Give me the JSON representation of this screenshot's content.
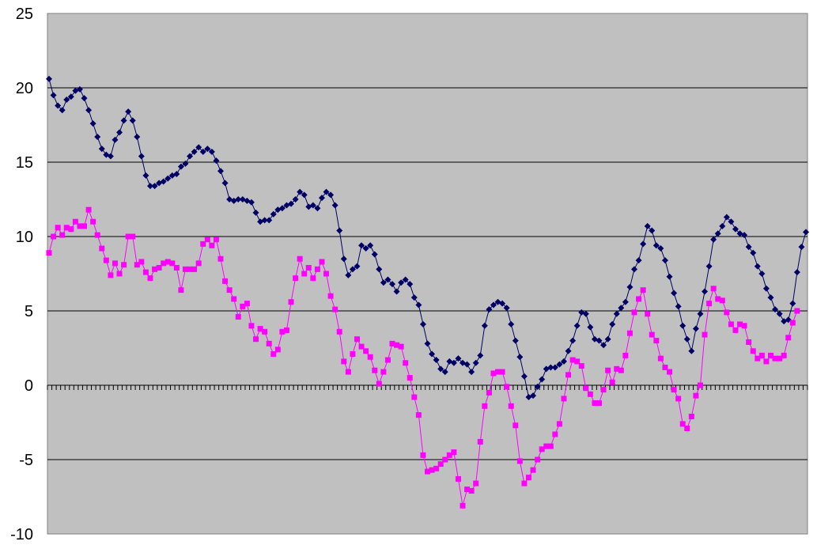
{
  "chart_data": {
    "type": "line",
    "title": "",
    "xlabel": "",
    "ylabel": "",
    "ylim": [
      -10,
      25
    ],
    "yticks": [
      25,
      20,
      15,
      10,
      5,
      0,
      -5,
      -10
    ],
    "grid": true,
    "legend": "none",
    "plot_background": "#c0c0c0",
    "series": [
      {
        "color": "#000066",
        "marker": "diamond",
        "values": [
          20.6,
          19.5,
          18.8,
          18.5,
          19.2,
          19.4,
          19.8,
          19.9,
          19.3,
          18.5,
          17.6,
          16.7,
          15.9,
          15.5,
          15.4,
          16.5,
          17.0,
          17.8,
          18.4,
          17.8,
          16.7,
          15.4,
          14.1,
          13.4,
          13.4,
          13.6,
          13.7,
          13.9,
          14.1,
          14.2,
          14.7,
          14.9,
          15.4,
          15.7,
          16.0,
          15.7,
          15.9,
          15.7,
          15.1,
          14.4,
          13.6,
          12.5,
          12.4,
          12.5,
          12.5,
          12.4,
          12.3,
          11.6,
          11.0,
          11.1,
          11.1,
          11.5,
          11.8,
          11.9,
          12.1,
          12.2,
          12.5,
          13.0,
          12.8,
          12.0,
          12.1,
          11.9,
          12.6,
          13.0,
          12.8,
          12.1,
          10.4,
          8.5,
          7.4,
          7.8,
          8.0,
          9.4,
          9.2,
          9.4,
          8.8,
          7.8,
          6.9,
          7.1,
          6.8,
          6.3,
          6.9,
          7.1,
          6.8,
          5.9,
          5.4,
          4.1,
          2.8,
          2.1,
          1.7,
          1.1,
          0.9,
          1.6,
          1.5,
          1.8,
          1.5,
          1.4,
          0.9,
          1.5,
          2.0,
          4.0,
          5.1,
          5.4,
          5.6,
          5.5,
          5.2,
          4.1,
          3.0,
          1.9,
          0.6,
          -0.8,
          -0.7,
          -0.1,
          0.4,
          1.1,
          1.2,
          1.2,
          1.4,
          1.6,
          2.3,
          3.0,
          4.0,
          4.9,
          4.8,
          3.9,
          3.1,
          3.0,
          2.7,
          3.1,
          4.1,
          4.8,
          5.2,
          5.6,
          6.6,
          7.8,
          8.4,
          9.5,
          10.7,
          10.4,
          9.4,
          9.2,
          8.4,
          7.3,
          6.2,
          5.3,
          4.0,
          3.1,
          2.3,
          3.8,
          4.8,
          6.3,
          8.0,
          9.8,
          10.2,
          10.7,
          11.3,
          11.0,
          10.5,
          10.2,
          10.1,
          9.3,
          8.9,
          8.0,
          7.5,
          6.5,
          5.9,
          5.1,
          4.8,
          4.3,
          4.4,
          5.5,
          7.6,
          9.3,
          10.3
        ]
      },
      {
        "color": "#ff00ff",
        "marker": "square",
        "values": [
          8.9,
          10.0,
          10.6,
          10.1,
          10.6,
          10.5,
          11.0,
          10.7,
          10.7,
          11.8,
          11.0,
          10.1,
          9.2,
          8.4,
          7.4,
          8.2,
          7.5,
          8.1,
          10.0,
          10.0,
          8.1,
          8.3,
          7.6,
          7.2,
          7.8,
          7.9,
          8.2,
          8.3,
          8.2,
          7.9,
          6.4,
          7.8,
          7.8,
          7.8,
          8.2,
          9.5,
          9.8,
          9.4,
          9.8,
          8.5,
          7.0,
          6.4,
          5.8,
          4.6,
          5.3,
          5.5,
          4.0,
          3.1,
          3.8,
          3.6,
          2.8,
          2.1,
          2.4,
          3.6,
          3.7,
          5.6,
          7.2,
          8.5,
          7.5,
          7.9,
          7.2,
          7.8,
          8.3,
          7.5,
          6.0,
          5.1,
          3.6,
          1.6,
          0.9,
          2.1,
          3.1,
          2.6,
          2.3,
          1.9,
          1.0,
          0.1,
          0.9,
          1.7,
          2.8,
          2.7,
          2.6,
          1.5,
          0.5,
          -0.8,
          -2.0,
          -4.7,
          -5.8,
          -5.7,
          -5.6,
          -5.3,
          -5.0,
          -4.7,
          -4.5,
          -6.3,
          -8.1,
          -7.0,
          -7.1,
          -6.6,
          -3.8,
          -1.4,
          -0.5,
          0.8,
          0.9,
          0.9,
          -0.1,
          -1.4,
          -2.7,
          -5.1,
          -6.6,
          -6.2,
          -5.7,
          -5.0,
          -4.3,
          -4.1,
          -4.1,
          -3.3,
          -2.6,
          -0.9,
          0.7,
          1.7,
          1.6,
          1.3,
          -0.2,
          -0.6,
          -1.2,
          -1.2,
          -0.3,
          1.0,
          0.2,
          1.1,
          1.0,
          2.0,
          3.5,
          4.9,
          5.8,
          6.4,
          4.8,
          3.4,
          3.0,
          1.8,
          1.2,
          0.9,
          -0.3,
          -0.9,
          -2.6,
          -2.9,
          -2.1,
          -0.7,
          0.0,
          3.4,
          5.5,
          6.5,
          5.8,
          5.7,
          4.9,
          4.1,
          3.7,
          4.1,
          4.0,
          2.9,
          2.3,
          1.8,
          2.0,
          1.6,
          2.0,
          1.8,
          1.8,
          2.0,
          3.2,
          4.2,
          5.0
        ]
      }
    ]
  }
}
